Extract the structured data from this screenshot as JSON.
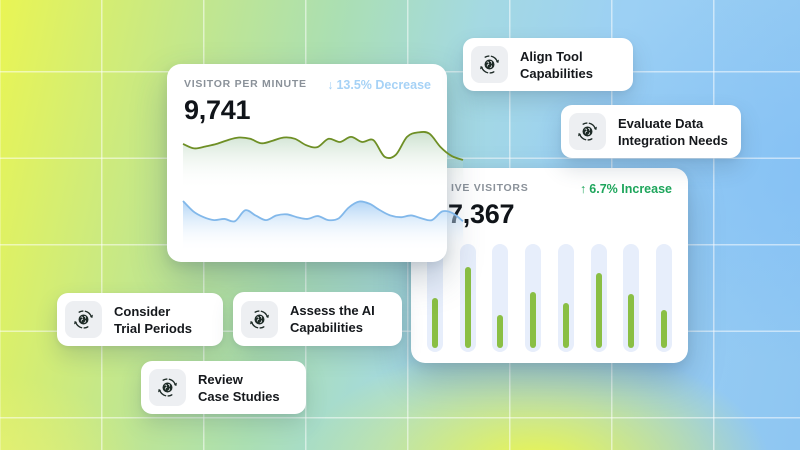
{
  "cards": {
    "visitor_per_minute": {
      "label": "VISITOR PER MINUTE",
      "value": "9,741",
      "trend": {
        "arrow": "↓",
        "text": "13.5% Decrease",
        "color": "#a6d2f6"
      }
    },
    "live_visitors": {
      "label": "IVE VISITORS",
      "value": "7,367",
      "trend": {
        "arrow": "↑",
        "text": "6.7% Increase",
        "color": "#1ea65c"
      }
    }
  },
  "chips": [
    {
      "icon": "ai-brain-cycle-icon",
      "line1": "Align Tool",
      "line2": "Capabilities"
    },
    {
      "icon": "ai-brain-cycle-icon",
      "line1": "Evaluate Data",
      "line2": "Integration Needs"
    },
    {
      "icon": "ai-brain-cycle-icon",
      "line1": "Consider",
      "line2": "Trial Periods"
    },
    {
      "icon": "ai-brain-cycle-icon",
      "line1": "Assess the AI",
      "line2": "Capabilities"
    },
    {
      "icon": "ai-brain-cycle-icon",
      "line1": "Review",
      "line2": "Case Studies"
    }
  ],
  "chart_data": [
    {
      "type": "area",
      "name": "visitor-per-minute-sparkline",
      "title": "VISITOR PER MINUTE",
      "annotation": "13.5% Decrease",
      "series": [
        72,
        65,
        68,
        72,
        78,
        82,
        80,
        73,
        77,
        82,
        80,
        70,
        67,
        80,
        75,
        83,
        75,
        78,
        52,
        55,
        83,
        90,
        88,
        67,
        53,
        47
      ],
      "line_color": "#6e8f25",
      "fill_color": "rgba(140,188,146,0.45)"
    },
    {
      "type": "area",
      "name": "visitor-per-minute-secondary-sparkline",
      "title": "",
      "annotation": "",
      "series": [
        88,
        70,
        60,
        55,
        57,
        53,
        72,
        63,
        55,
        63,
        65,
        60,
        57,
        62,
        55,
        58,
        77,
        87,
        83,
        72,
        63,
        60,
        63,
        58,
        55,
        70,
        67,
        53
      ],
      "line_color": "#82b8ea",
      "fill_color": "rgba(150,197,242,0.75)"
    },
    {
      "type": "bar",
      "name": "live-visitors-bars",
      "title": "IVE VISITORS",
      "annotation": "6.7% Increase",
      "values_pct": [
        46,
        75,
        31,
        52,
        42,
        69,
        50,
        35
      ],
      "bar_color": "#8abf44",
      "track_color": "#e7eefb"
    }
  ],
  "colors": {
    "grid_line": "rgba(255,255,255,0.52)",
    "card_label": "#8a9199",
    "value_text": "#101419"
  }
}
